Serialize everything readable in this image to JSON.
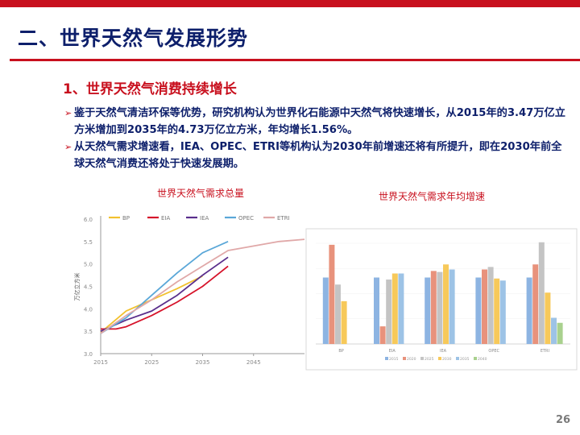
{
  "slide": {
    "title": "二、世界天然气发展形势",
    "subtitle": "1、世界天然气消费持续增长",
    "bullets": [
      "鉴于天然气清洁环保等优势，研究机构认为世界化石能源中天然气将快速增长，从2015年的3.47万亿立方米增加到2035年的4.73万亿立方米，年均增长1.56%。",
      "从天然气需求增速看，IEA、OPEC、ETRI等机构认为2030年前增速还将有所提升，即在2030年前全球天然气消费还将处于快速发展期。"
    ],
    "page_number": "26",
    "colors": {
      "accent": "#c8101e",
      "title": "#0d1f6b"
    }
  },
  "chart_data": [
    {
      "type": "line",
      "title": "世界天然气需求总量",
      "ylabel": "万亿立方米",
      "xlabel": "",
      "x": [
        2015,
        2020,
        2025,
        2030,
        2035,
        2040,
        2045,
        2050
      ],
      "x_ticks": [
        "2015",
        "2025",
        "2035",
        "2045"
      ],
      "y_ticks": [
        "3.0",
        "3.5",
        "4.0",
        "4.5",
        "5.0",
        "5.5",
        "6.0"
      ],
      "ylim": [
        3.0,
        6.0
      ],
      "xlim": [
        2015,
        2055
      ],
      "legend_position": "top",
      "series": [
        {
          "name": "BP",
          "color": "#f2c12e",
          "x": [
            2015,
            2020,
            2025,
            2030,
            2035
          ],
          "values": [
            3.47,
            3.95,
            4.2,
            4.45,
            4.73
          ]
        },
        {
          "name": "EIA",
          "color": "#d6132a",
          "x": [
            2015,
            2018,
            2020,
            2025,
            2030,
            2035,
            2040
          ],
          "values": [
            3.55,
            3.55,
            3.6,
            3.85,
            4.15,
            4.5,
            4.95
          ]
        },
        {
          "name": "IEA",
          "color": "#5a2e8c",
          "x": [
            2015,
            2020,
            2025,
            2030,
            2035,
            2040
          ],
          "values": [
            3.5,
            3.75,
            3.95,
            4.3,
            4.75,
            5.15
          ]
        },
        {
          "name": "OPEC",
          "color": "#5aa7d8",
          "x": [
            2015,
            2020,
            2025,
            2030,
            2035,
            2040
          ],
          "values": [
            3.45,
            3.8,
            4.3,
            4.8,
            5.25,
            5.5
          ]
        },
        {
          "name": "ETRI",
          "color": "#e0a8a8",
          "x": [
            2015,
            2020,
            2025,
            2030,
            2035,
            2040,
            2045,
            2050,
            2055
          ],
          "values": [
            3.45,
            3.85,
            4.2,
            4.6,
            4.95,
            5.3,
            5.4,
            5.5,
            5.55
          ]
        }
      ]
    },
    {
      "type": "bar",
      "title": "世界天然气需求年均增速",
      "categories": [
        "BP",
        "EIA",
        "IEA",
        "OPEC",
        "ETRI"
      ],
      "ylim": [
        0,
        2.0
      ],
      "series": [
        {
          "name": "2015",
          "color": "#8db4e2",
          "values": [
            1.32,
            1.32,
            1.32,
            1.32,
            1.32
          ]
        },
        {
          "name": "2020",
          "color": "#e8927c",
          "values": [
            1.97,
            0.35,
            1.45,
            1.48,
            1.58
          ]
        },
        {
          "name": "2025",
          "color": "#c4c4c4",
          "values": [
            1.18,
            1.28,
            1.43,
            1.53,
            2.02
          ]
        },
        {
          "name": "2030",
          "color": "#f7c95a",
          "values": [
            0.85,
            1.4,
            1.58,
            1.3,
            1.02
          ]
        },
        {
          "name": "2035",
          "color": "#9dc3e6",
          "values": [
            0,
            1.4,
            1.48,
            1.26,
            0.52
          ]
        },
        {
          "name": "2040",
          "color": "#a9d18e",
          "values": [
            0,
            0,
            0,
            0,
            0.42
          ]
        }
      ]
    }
  ]
}
